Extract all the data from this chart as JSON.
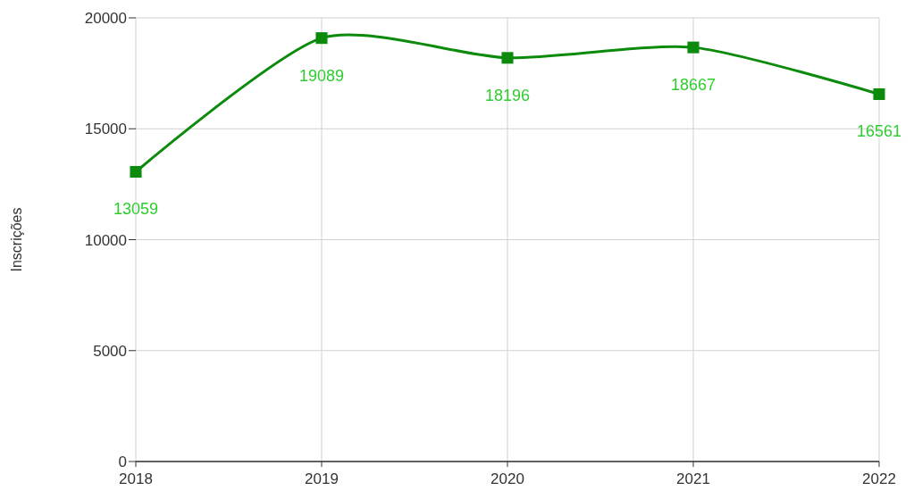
{
  "chart_data": {
    "type": "line",
    "ylabel": "Inscrições",
    "categories": [
      "2018",
      "2019",
      "2020",
      "2021",
      "2022"
    ],
    "series": [
      {
        "color": "#0b8a0b",
        "values": [
          13059,
          19089,
          18196,
          18667,
          16561
        ]
      }
    ],
    "ylim": [
      0,
      20000
    ],
    "yticks": [
      0,
      5000,
      10000,
      15000,
      20000
    ],
    "grid": true,
    "marker": "square",
    "line_style": "solid",
    "data_labels": true
  }
}
